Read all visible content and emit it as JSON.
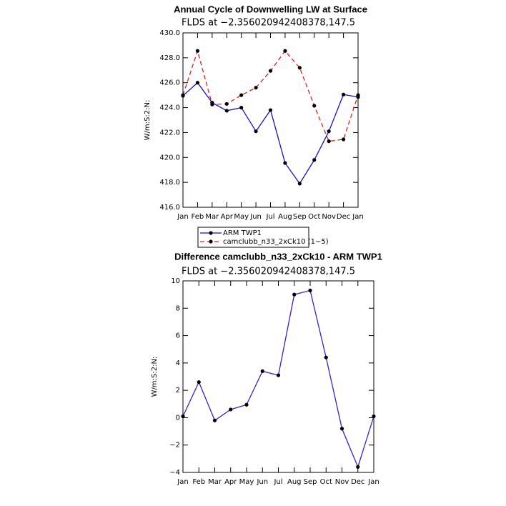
{
  "chart_data": [
    {
      "type": "line",
      "title": "Annual Cycle of Downwelling LW at Surface",
      "subtitle": "FLDS at −2.356020942408378,147.5",
      "y_label": "W/m:S:2:N:",
      "categories": [
        "Jan",
        "Feb",
        "Mar",
        "Apr",
        "May",
        "Jun",
        "Jul",
        "Aug",
        "Sep",
        "Oct",
        "Nov",
        "Dec",
        "Jan"
      ],
      "series": [
        {
          "name": "ARM TWP1",
          "color": "#1010d8",
          "line_style": "solid",
          "values": [
            424.95,
            426.0,
            424.4,
            423.75,
            424.0,
            422.1,
            423.8,
            419.55,
            417.9,
            419.8,
            422.1,
            425.05,
            424.85
          ]
        },
        {
          "name": "camclubb_n33_2xCk10 (1−5)",
          "color": "#e02020",
          "line_style": "dashed",
          "values": [
            425.0,
            428.55,
            424.25,
            424.3,
            425.0,
            425.6,
            426.95,
            428.55,
            427.2,
            424.15,
            421.3,
            421.45,
            425.0
          ]
        }
      ],
      "ylim": [
        416,
        430
      ],
      "yticks": [
        {
          "value": 416,
          "label": "416.0"
        },
        {
          "value": 418,
          "label": "418.0"
        },
        {
          "value": 420,
          "label": "420.0"
        },
        {
          "value": 422,
          "label": "422.0"
        },
        {
          "value": 424,
          "label": "424.0"
        },
        {
          "value": 426,
          "label": "426.0"
        },
        {
          "value": 428,
          "label": "428.0"
        },
        {
          "value": 430,
          "label": "430.0"
        }
      ],
      "legend": "below"
    },
    {
      "type": "line",
      "title": "Difference camclubb_n33_2xCk10 - ARM TWP1",
      "subtitle": "FLDS at −2.356020942408378,147.5",
      "y_label": "W/m:S:2:N:",
      "categories": [
        "Jan",
        "Feb",
        "Mar",
        "Apr",
        "May",
        "Jun",
        "Jul",
        "Aug",
        "Sep",
        "Oct",
        "Nov",
        "Dec",
        "Jan"
      ],
      "values": [
        0.1,
        2.6,
        -0.2,
        0.6,
        0.95,
        3.4,
        3.1,
        9.0,
        9.3,
        4.4,
        -0.8,
        -3.6,
        0.1
      ],
      "color": "#3a1fd0",
      "ylim": [
        -4,
        10
      ],
      "yticks": [
        {
          "value": -4,
          "label": "−4"
        },
        {
          "value": -2,
          "label": "−2"
        },
        0,
        2,
        4,
        6,
        8,
        10
      ]
    }
  ]
}
